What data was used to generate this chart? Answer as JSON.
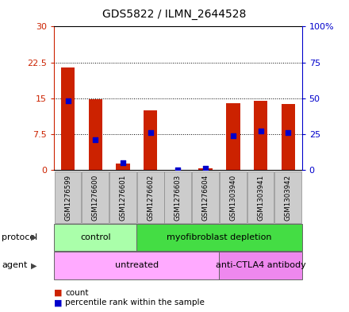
{
  "title": "GDS5822 / ILMN_2644528",
  "samples": [
    "GSM1276599",
    "GSM1276600",
    "GSM1276601",
    "GSM1276602",
    "GSM1276603",
    "GSM1276604",
    "GSM1303940",
    "GSM1303941",
    "GSM1303942"
  ],
  "counts": [
    21.5,
    14.8,
    1.3,
    12.5,
    0.05,
    0.3,
    14.0,
    14.5,
    13.8
  ],
  "percentiles": [
    48,
    21,
    5,
    26,
    0.2,
    1.0,
    24,
    27,
    26
  ],
  "ylim_left": [
    0,
    30
  ],
  "ylim_right": [
    0,
    100
  ],
  "yticks_left": [
    0,
    7.5,
    15,
    22.5,
    30
  ],
  "yticks_right": [
    0,
    25,
    50,
    75,
    100
  ],
  "ytick_labels_left": [
    "0",
    "7.5",
    "15",
    "22.5",
    "30"
  ],
  "ytick_labels_right": [
    "0",
    "25",
    "50",
    "75",
    "100%"
  ],
  "bar_color": "#cc2200",
  "dot_color": "#0000cc",
  "protocol_groups": [
    {
      "label": "control",
      "start": 0,
      "end": 3,
      "color": "#aaffaa"
    },
    {
      "label": "myofibroblast depletion",
      "start": 3,
      "end": 9,
      "color": "#44dd44"
    }
  ],
  "agent_groups": [
    {
      "label": "untreated",
      "start": 0,
      "end": 6,
      "color": "#ffaaff"
    },
    {
      "label": "anti-CTLA4 antibody",
      "start": 6,
      "end": 9,
      "color": "#ee88ee"
    }
  ],
  "legend_count_label": "count",
  "legend_pct_label": "percentile rank within the sample",
  "grid_color": "#000000",
  "bar_width": 0.5,
  "background_color": "#ffffff",
  "plot_bg_color": "#ffffff",
  "sample_bg_color": "#cccccc",
  "ax_left_color": "#cc2200",
  "ax_right_color": "#0000cc",
  "protocol_label": "protocol",
  "agent_label": "agent"
}
